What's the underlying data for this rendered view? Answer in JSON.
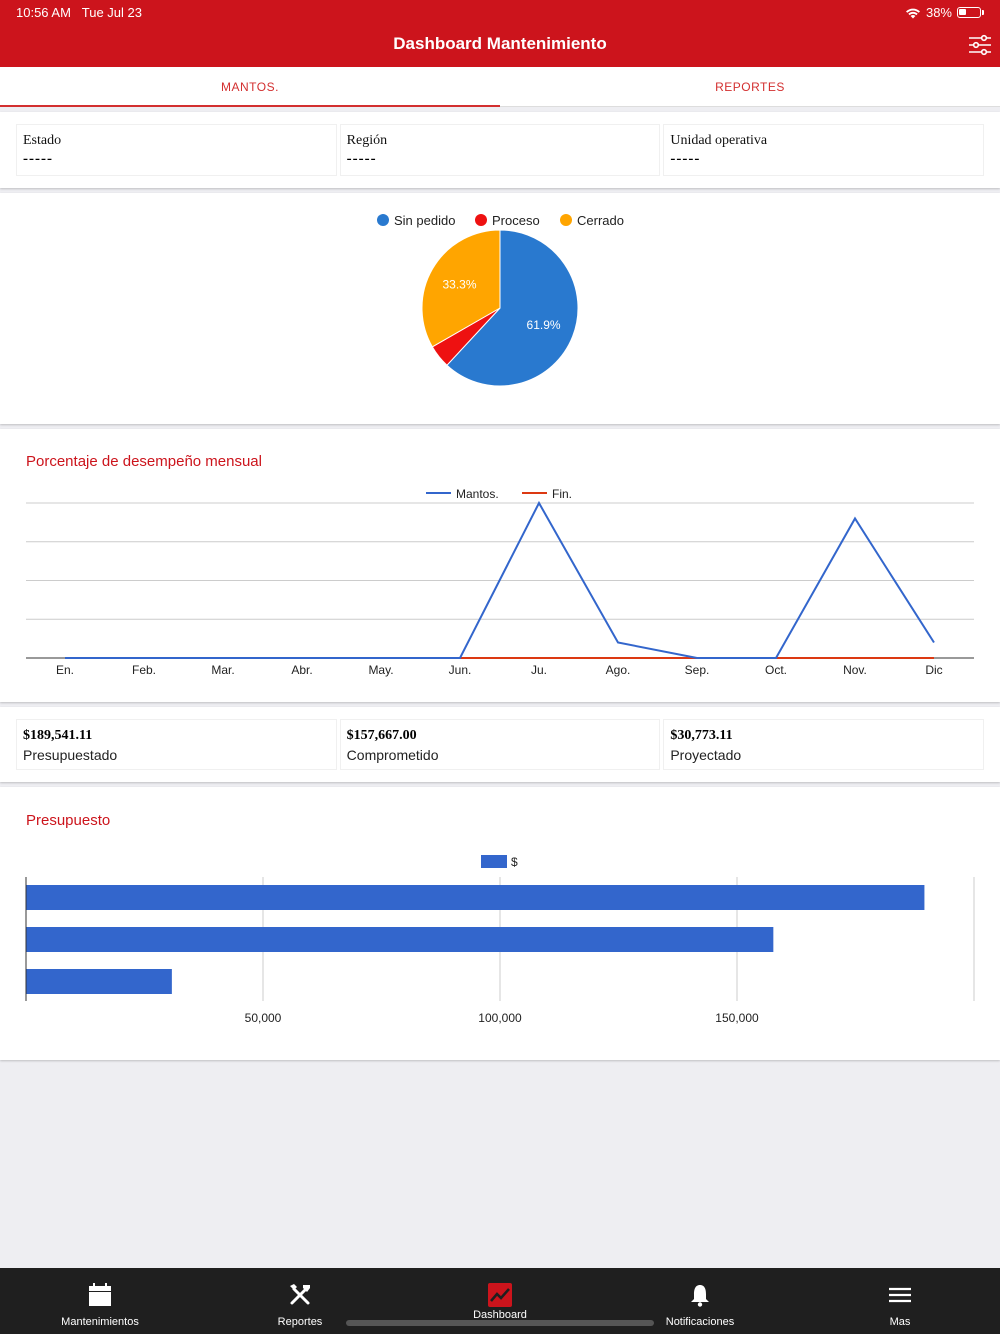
{
  "status": {
    "time": "10:56 AM",
    "date": "Tue Jul 23",
    "battery": "38%",
    "battery_level": 0.38
  },
  "header": {
    "title": "Dashboard Mantenimiento",
    "filter_icon": "sliders-icon"
  },
  "tabs": [
    {
      "label": "MANTOS.",
      "active": true
    },
    {
      "label": "REPORTES",
      "active": false
    }
  ],
  "filters": [
    {
      "label": "Estado",
      "value": "-----"
    },
    {
      "label": "Región",
      "value": "-----"
    },
    {
      "label": "Unidad operativa",
      "value": "-----"
    }
  ],
  "amounts": [
    {
      "value": "$189,541.11",
      "label": "Presupuestado"
    },
    {
      "value": "$157,667.00",
      "label": "Comprometido"
    },
    {
      "value": "$30,773.11",
      "label": "Proyectado"
    }
  ],
  "line_title": "Porcentaje de desempeño mensual",
  "bar_title": "Presupuesto",
  "chart_data": [
    {
      "type": "pie",
      "categories": [
        "Sin pedido",
        "Proceso",
        "Cerrado"
      ],
      "values": [
        61.9,
        4.8,
        33.3
      ],
      "slice_labels": [
        "61.9%",
        "",
        "33.3%"
      ],
      "colors": [
        "#2979cf",
        "#ee1111",
        "#ffa500"
      ],
      "legend": "top"
    },
    {
      "type": "line",
      "x": [
        "En.",
        "Feb.",
        "Mar.",
        "Abr.",
        "May.",
        "Jun.",
        "Ju.",
        "Ago.",
        "Sep.",
        "Oct.",
        "Nov.",
        "Dic"
      ],
      "series": [
        {
          "name": "Mantos.",
          "color": "#3366cc",
          "values": [
            0,
            0,
            0,
            0,
            0,
            0,
            100,
            10,
            0,
            0,
            90,
            10
          ]
        },
        {
          "name": "Fin.",
          "color": "#dc3912",
          "values": [
            0,
            0,
            0,
            0,
            0,
            0,
            0,
            0,
            0,
            0,
            0,
            0
          ]
        }
      ],
      "ylim": [
        0,
        100
      ],
      "grid": true,
      "legend": "top"
    },
    {
      "type": "bar",
      "orientation": "horizontal",
      "series": [
        {
          "name": "$",
          "color": "#3366cc",
          "values": [
            189541.11,
            157667.0,
            30773.11
          ]
        }
      ],
      "xticks": [
        "50,000",
        "100,000",
        "150,000"
      ],
      "xtick_values": [
        50000,
        100000,
        150000
      ],
      "xlim": [
        0,
        200000
      ],
      "grid": true,
      "legend": "top"
    }
  ],
  "tabbar": [
    {
      "label": "Mantenimientos",
      "icon": "calendar-icon",
      "active": false
    },
    {
      "label": "Reportes",
      "icon": "tools-icon",
      "active": false
    },
    {
      "label": "Dashboard",
      "icon": "chart-icon",
      "active": true
    },
    {
      "label": "Notificaciones",
      "icon": "bell-icon",
      "active": false
    },
    {
      "label": "Mas",
      "icon": "menu-icon",
      "active": false
    }
  ]
}
